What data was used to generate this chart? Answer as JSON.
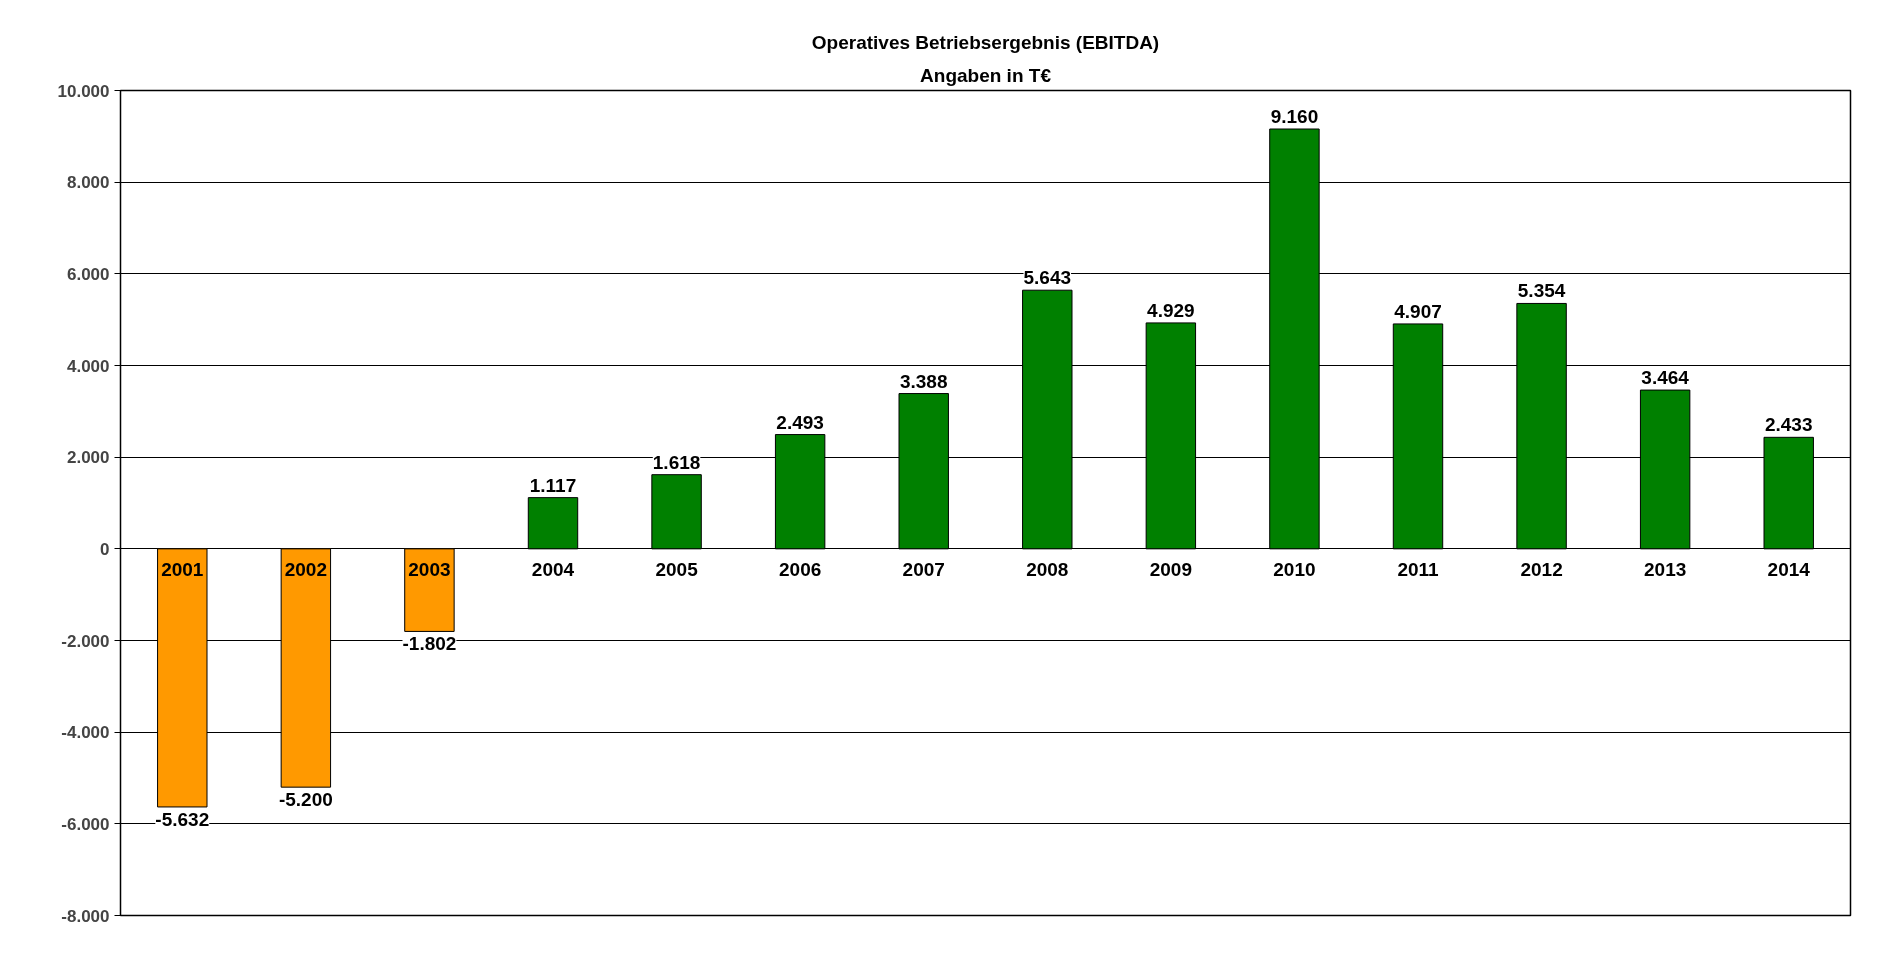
{
  "chart_data": {
    "type": "bar",
    "title": "Operatives Betriebsergebnis (EBITDA)",
    "subtitle": "Angaben in T€",
    "categories": [
      "2001",
      "2002",
      "2003",
      "2004",
      "2005",
      "2006",
      "2007",
      "2008",
      "2009",
      "2010",
      "2011",
      "2012",
      "2013",
      "2014"
    ],
    "values": [
      -5632,
      -5200,
      -1802,
      1117,
      1618,
      2493,
      3388,
      5643,
      4929,
      9160,
      4907,
      5354,
      3464,
      2433
    ],
    "colors": [
      "#ff9900",
      "#ff9900",
      "#ff9900",
      "#008000",
      "#008000",
      "#008000",
      "#008000",
      "#008000",
      "#008000",
      "#008000",
      "#008000",
      "#008000",
      "#008000",
      "#008000"
    ],
    "value_labels": [
      "-5.632",
      "-5.200",
      "-1.802",
      "1.117",
      "1.618",
      "2.493",
      "3.388",
      "5.643",
      "4.929",
      "9.160",
      "4.907",
      "5.354",
      "3.464",
      "2.433"
    ],
    "ylim": [
      -8000,
      10000
    ],
    "yticks": [
      {
        "value": -8000,
        "label": "-8.000"
      },
      {
        "value": -6000,
        "label": "-6.000"
      },
      {
        "value": -4000,
        "label": "-4.000"
      },
      {
        "value": -2000,
        "label": "-2.000"
      },
      0,
      {
        "value": 2000,
        "label": "2.000"
      },
      {
        "value": 4000,
        "label": "4.000"
      },
      {
        "value": 6000,
        "label": "6.000"
      },
      {
        "value": 8000,
        "label": "8.000"
      },
      {
        "value": 10000,
        "label": "10.000"
      }
    ],
    "grid": "y"
  }
}
